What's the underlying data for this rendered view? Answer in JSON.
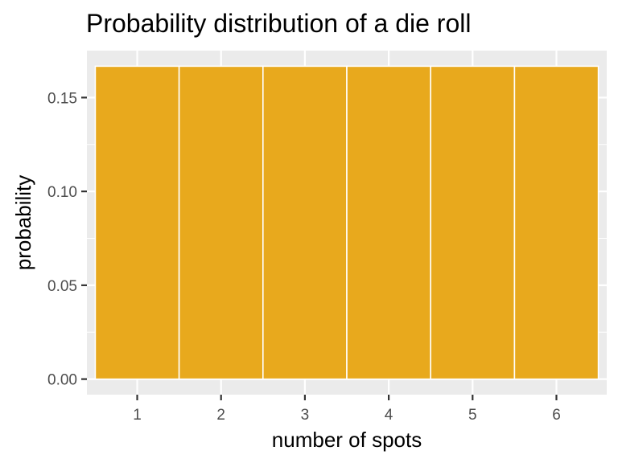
{
  "chart_data": {
    "type": "bar",
    "title": "Probability distribution of a die roll",
    "xlabel": "number of spots",
    "ylabel": "probability",
    "categories": [
      "1",
      "2",
      "3",
      "4",
      "5",
      "6"
    ],
    "values": [
      0.1667,
      0.1667,
      0.1667,
      0.1667,
      0.1667,
      0.1667
    ],
    "ylim": [
      -0.0083,
      0.175
    ],
    "y_ticks": [
      0.0,
      0.05,
      0.1,
      0.15
    ],
    "y_tick_labels": [
      "0.00",
      "0.05",
      "0.10",
      "0.15"
    ],
    "grid": true,
    "legend": "none",
    "colors": {
      "bar": "#E8A91D",
      "panel": "#EBEBEB",
      "grid": "#FFFFFF",
      "tick_text": "#4d4d4d",
      "tick_mark": "#333333"
    }
  }
}
